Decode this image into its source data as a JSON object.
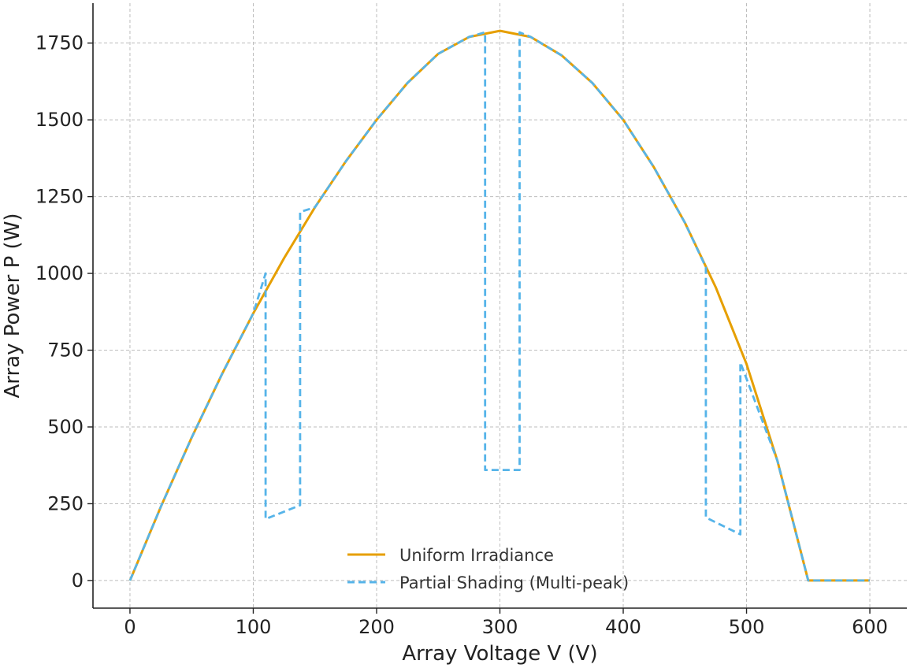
{
  "chart_data": {
    "type": "line",
    "title": "",
    "xlabel": "Array Voltage V (V)",
    "ylabel": "Array Power P (W)",
    "xlim": [
      -30,
      630
    ],
    "ylim": [
      -90,
      1880
    ],
    "xticks": [
      0,
      100,
      200,
      300,
      400,
      500,
      600
    ],
    "yticks": [
      0,
      250,
      500,
      750,
      1000,
      1250,
      1500,
      1750
    ],
    "grid": true,
    "legend_position": "bottom-center",
    "series": [
      {
        "name": "Uniform Irradiance",
        "color": "#E69F00",
        "style": "solid",
        "x": [
          0,
          25,
          50,
          75,
          100,
          125,
          150,
          175,
          200,
          225,
          250,
          275,
          300,
          325,
          350,
          375,
          400,
          425,
          450,
          475,
          500,
          525,
          550,
          575,
          600
        ],
        "y": [
          0,
          240,
          465,
          675,
          870,
          1050,
          1215,
          1365,
          1500,
          1620,
          1715,
          1770,
          1790,
          1770,
          1710,
          1620,
          1500,
          1345,
          1165,
          955,
          705,
          390,
          0,
          0,
          0
        ]
      },
      {
        "name": "Partial Shading (Multi-peak)",
        "color": "#56B4E9",
        "style": "dashed",
        "x": [
          0,
          25,
          50,
          75,
          100,
          110,
          110,
          138,
          138,
          150,
          175,
          200,
          225,
          250,
          275,
          288,
          288,
          316,
          316,
          325,
          350,
          375,
          400,
          425,
          450,
          467,
          467,
          495,
          495,
          525,
          550,
          575,
          600
        ],
        "y": [
          0,
          240,
          465,
          675,
          870,
          1000,
          200,
          245,
          1200,
          1215,
          1365,
          1500,
          1620,
          1715,
          1770,
          1785,
          360,
          360,
          1785,
          1770,
          1710,
          1620,
          1500,
          1345,
          1165,
          1020,
          205,
          150,
          710,
          390,
          0,
          0,
          0
        ]
      }
    ]
  }
}
